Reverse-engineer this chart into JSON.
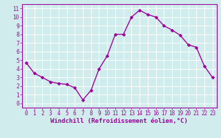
{
  "x": [
    0,
    1,
    2,
    3,
    4,
    5,
    6,
    7,
    8,
    9,
    10,
    11,
    12,
    13,
    14,
    15,
    16,
    17,
    18,
    19,
    20,
    21,
    22,
    23
  ],
  "y": [
    4.7,
    3.5,
    3.0,
    2.5,
    2.3,
    2.2,
    1.8,
    0.4,
    1.5,
    4.0,
    5.5,
    8.0,
    8.0,
    10.0,
    10.8,
    10.3,
    10.0,
    9.0,
    8.5,
    7.9,
    6.8,
    6.5,
    4.3,
    3.0
  ],
  "xlabel": "Windchill (Refroidissement éolien,°C)",
  "ylim": [
    -0.5,
    11.5
  ],
  "xlim": [
    -0.5,
    23.5
  ],
  "yticks": [
    0,
    1,
    2,
    3,
    4,
    5,
    6,
    7,
    8,
    9,
    10,
    11
  ],
  "xticks": [
    0,
    1,
    2,
    3,
    4,
    5,
    6,
    7,
    8,
    9,
    10,
    11,
    12,
    13,
    14,
    15,
    16,
    17,
    18,
    19,
    20,
    21,
    22,
    23
  ],
  "line_color": "#9b009b",
  "marker": "D",
  "marker_size": 2.5,
  "bg_color": "#d0ecec",
  "grid_color": "#b8d8d8",
  "tick_label_color": "#9b009b",
  "xlabel_color": "#9b009b",
  "spine_color": "#9b009b",
  "tick_fontsize": 5.5,
  "xlabel_fontsize": 6.5
}
